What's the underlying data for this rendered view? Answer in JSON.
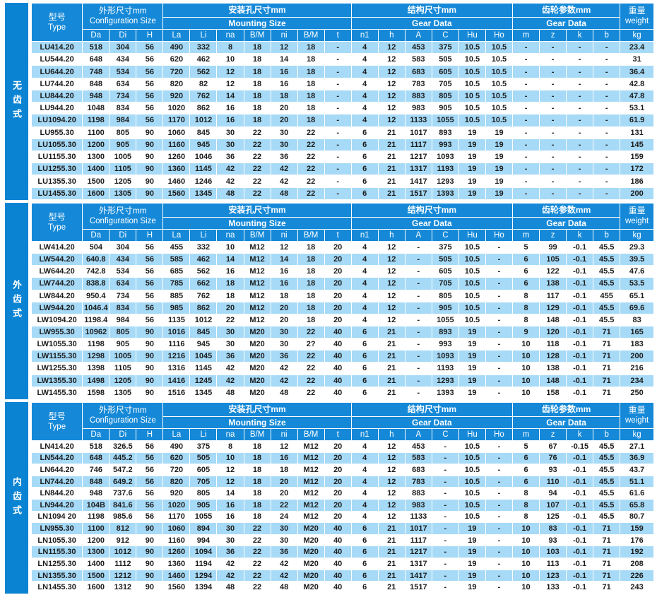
{
  "colors": {
    "header_blue": "#1589d8",
    "sidebar_blue": "#0a83d3",
    "row_light_blue": "#a6daf7",
    "row_white": "#ffffff",
    "text_dark": "#1c1c1c",
    "header_text": "#ffffff"
  },
  "header": {
    "type_cn": "型号",
    "type_en": "Type",
    "groups": [
      {
        "cn": "外形尺寸mm",
        "en": "Configuration Size",
        "cols": [
          "Da",
          "Di",
          "H"
        ],
        "merged_title": true
      },
      {
        "cn": "安装孔尺寸mm",
        "en": "Mounting Size",
        "cols": [
          "La",
          "Li",
          "na",
          "B/M",
          "ni",
          "B/M",
          "t"
        ],
        "merged_title": false
      },
      {
        "cn": "结构尺寸mm",
        "en": "Gear Data",
        "cols": [
          "n1",
          "h",
          "A",
          "C",
          "Hu",
          "Ho"
        ],
        "merged_title": false
      },
      {
        "cn": "齿轮参数mm",
        "en": "Gear Data",
        "cols": [
          "m",
          "z",
          "k",
          "b"
        ],
        "merged_title": false
      }
    ],
    "weight_cn": "重量",
    "weight_en": "weight",
    "weight_col": "kg"
  },
  "sections": [
    {
      "side_label": "无齿式",
      "first_row_shade": "light",
      "rows": [
        [
          "LU414.20",
          "518",
          "304",
          "56",
          "490",
          "332",
          "8",
          "18",
          "12",
          "18",
          "-",
          "4",
          "12",
          "453",
          "375",
          "10.5",
          "10.5",
          "-",
          "-",
          "-",
          "-",
          "23.4"
        ],
        [
          "LU544.20",
          "648",
          "434",
          "56",
          "620",
          "462",
          "10",
          "18",
          "14",
          "18",
          "-",
          "4",
          "12",
          "583",
          "505",
          "10.5",
          "10.5",
          "-",
          "-",
          "-",
          "-",
          "31"
        ],
        [
          "LU644.20",
          "748",
          "534",
          "56",
          "720",
          "562",
          "12",
          "18",
          "16",
          "18",
          "-",
          "4",
          "12",
          "683",
          "605",
          "10.5",
          "10.5",
          "-",
          "-",
          "-",
          "-",
          "36.4"
        ],
        [
          "LU744.20",
          "848",
          "634",
          "56",
          "820",
          "82",
          "12",
          "18",
          "16",
          "18",
          "-",
          "4",
          "12",
          "783",
          "705",
          "10.5",
          "10.5",
          "-",
          "-",
          "-",
          "-",
          "42.8"
        ],
        [
          "LU844.20",
          "948",
          "734",
          "56",
          "920",
          "762",
          "14",
          "18",
          "18",
          "18",
          "-",
          "4",
          "12",
          "883",
          "805",
          "10 5",
          "10.5",
          "-",
          "-",
          "-",
          "-",
          "47.8"
        ],
        [
          "LU944.20",
          "1048",
          "834",
          "56",
          "1020",
          "862",
          "16",
          "18",
          "20",
          "18",
          "-",
          "4",
          "12",
          "983",
          "905",
          "10.5",
          "10.5",
          "-",
          "-",
          "-",
          "-",
          "53.1"
        ],
        [
          "LU1094.20",
          "1198",
          "984",
          "56",
          "1170",
          "1012",
          "16",
          "18",
          "20",
          "18",
          "-",
          "4",
          "12",
          "1133",
          "1055",
          "10.5",
          "10.5",
          "-",
          "-",
          "-",
          "-",
          "61.9"
        ],
        [
          "LU955.30",
          "1100",
          "805",
          "90",
          "1060",
          "845",
          "30",
          "22",
          "30",
          "22",
          "-",
          "6",
          "21",
          "1017",
          "893",
          "19",
          "19",
          "-",
          "-",
          "-",
          "-",
          "131"
        ],
        [
          "LU1055.30",
          "1200",
          "905",
          "90",
          "1160",
          "945",
          "30",
          "22",
          "30",
          "22",
          "-",
          "6",
          "21",
          "1117",
          "993",
          "19",
          "19",
          "-",
          "-",
          "-",
          "-",
          "145"
        ],
        [
          "LU1155.30",
          "1300",
          "1005",
          "90",
          "1260",
          "1046",
          "36",
          "22",
          "36",
          "22",
          "-",
          "6",
          "21",
          "1217",
          "1093",
          "19",
          "19",
          "-",
          "-",
          "-",
          "-",
          "159"
        ],
        [
          "LU1255.30",
          "1400",
          "1105",
          "90",
          "1360",
          "1145",
          "42",
          "22",
          "42",
          "22",
          "-",
          "6",
          "21",
          "1317",
          "1193",
          "19",
          "19",
          "-",
          "-",
          "-",
          "-",
          "172"
        ],
        [
          "LU1355.30",
          "1500",
          "1205",
          "90",
          "1460",
          "1246",
          "42",
          "22",
          "42",
          "22",
          "-",
          "6",
          "21",
          "1417",
          "1293",
          "19",
          "19",
          "-",
          "-",
          "-",
          "-",
          "186"
        ],
        [
          "LU1455.30",
          "1600",
          "1305",
          "90",
          "1560",
          "1345",
          "48",
          "22",
          "48",
          "22",
          "-",
          "6",
          "21",
          "1517",
          "1393",
          "19",
          "19",
          "-",
          "-",
          "-",
          "-",
          "200"
        ]
      ]
    },
    {
      "side_label": "外齿式",
      "first_row_shade": "white",
      "rows": [
        [
          "LW414.20",
          "504",
          "304",
          "56",
          "455",
          "332",
          "10",
          "M12",
          "12",
          "18",
          "20",
          "4",
          "12",
          "-",
          "375",
          "10.5",
          "-",
          "5",
          "99",
          "-0.1",
          "45.5",
          "29.3"
        ],
        [
          "LW544.20",
          "640.8",
          "434",
          "56",
          "585",
          "462",
          "14",
          "M12",
          "14",
          "18",
          "20",
          "4",
          "12",
          "-",
          "505",
          "10.5",
          "-",
          "6",
          "105",
          "-0.1",
          "45.5",
          "39.5"
        ],
        [
          "LW644.20",
          "742.8",
          "534",
          "56",
          "685",
          "562",
          "16",
          "M12",
          "16",
          "18",
          "20",
          "4",
          "12",
          "-",
          "605",
          "10.5",
          "-",
          "6",
          "122",
          "-0.1",
          "45.5",
          "47.6"
        ],
        [
          "LW744.20",
          "838.8",
          "634",
          "56",
          "785",
          "662",
          "18",
          "M12",
          "16",
          "18",
          "20",
          "4",
          "12",
          "-",
          "705",
          "10.5",
          "-",
          "6",
          "138",
          "-0.1",
          "45.5",
          "53.5"
        ],
        [
          "LW844.20",
          "950.4",
          "734",
          "56",
          "885",
          "762",
          "18",
          "M12",
          "18",
          "18",
          "20",
          "4",
          "12",
          "-",
          "805",
          "10.5",
          "-",
          "8",
          "117",
          "-0.1",
          "455",
          "65.1"
        ],
        [
          "LW944.20",
          "1046.4",
          "834",
          "56",
          "985",
          "862",
          "20",
          "M12",
          "20",
          "18",
          "20",
          "4",
          "12",
          "-",
          "905",
          "10.5",
          "-",
          "8",
          "129",
          "-0.1",
          "45.5",
          "69.6"
        ],
        [
          "LW1094.20",
          "1198.4",
          "984",
          "56",
          "1135",
          "1012",
          "22",
          "M12",
          "20",
          "18",
          "20",
          "4",
          "12",
          "-",
          "1055",
          "10.5",
          "-",
          "8",
          "148",
          "-0.1",
          "45.5",
          "83"
        ],
        [
          "LW955.30",
          "10962",
          "805",
          "90",
          "1016",
          "845",
          "30",
          "M20",
          "30",
          "22",
          "40",
          "6",
          "21",
          "-",
          "893",
          "19",
          "-",
          "9",
          "120",
          "-0.1",
          "71",
          "165"
        ],
        [
          "LW1055.30",
          "1198",
          "905",
          "90",
          "1116",
          "945",
          "30",
          "M20",
          "30",
          "2?",
          "40",
          "6",
          "21",
          "-",
          "993",
          "19",
          "-",
          "10",
          "118",
          "-0.1",
          "71",
          "183"
        ],
        [
          "LW1155.30",
          "1298",
          "1005",
          "90",
          "1216",
          "1045",
          "36",
          "M20",
          "36",
          "22",
          "40",
          "6",
          "21",
          "-",
          "1093",
          "19",
          "-",
          "10",
          "128",
          "-0.1",
          "71",
          "200"
        ],
        [
          "LW1255.30",
          "1398",
          "1105",
          "90",
          "1316",
          "1145",
          "42",
          "M20",
          "42",
          "22",
          "40",
          "6",
          "21",
          "-",
          "1193",
          "19",
          "-",
          "10",
          "138",
          "-0.1",
          "71",
          "216"
        ],
        [
          "LW1355.30",
          "1498",
          "1205",
          "90",
          "1416",
          "1245",
          "42",
          "M20",
          "42",
          "22",
          "40",
          "6",
          "21",
          "-",
          "1293",
          "19",
          "-",
          "10",
          "148",
          "-0.1",
          "71",
          "234"
        ],
        [
          "LW1455.30",
          "1598",
          "1305",
          "90",
          "1516",
          "1345",
          "48",
          "M20",
          "48",
          "22",
          "40",
          "6",
          "21",
          "-",
          "1393",
          "19",
          "-",
          "10",
          "158",
          "-0.1",
          "71",
          "250"
        ]
      ]
    },
    {
      "side_label": "内齿式",
      "first_row_shade": "white",
      "rows": [
        [
          "LN414.20",
          "518",
          "326.5",
          "56",
          "490",
          "375",
          "8",
          "18",
          "12",
          "M12",
          "20",
          "4",
          "12",
          "453",
          "-",
          "10.5",
          "-",
          "5",
          "67",
          "-0.15",
          "45.5",
          "27.1"
        ],
        [
          "LN544.20",
          "648",
          "445.2",
          "56",
          "620",
          "505",
          "10",
          "18",
          "16",
          "M12",
          "20",
          "4",
          "12",
          "583",
          "-",
          "10.5",
          "-",
          "6",
          "76",
          "-0.1",
          "45.5",
          "36.9"
        ],
        [
          "LN644.20",
          "746",
          "547.2",
          "56",
          "720",
          "605",
          "12",
          "18",
          "18",
          "M12",
          "20",
          "4",
          "12",
          "683",
          "-",
          "10.5",
          "-",
          "6",
          "93",
          "-0.1",
          "45.5",
          "43.7"
        ],
        [
          "LN744.20",
          "848",
          "649.2",
          "56",
          "820",
          "705",
          "12",
          "18",
          "20",
          "M12",
          "20",
          "4",
          "12",
          "783",
          "-",
          "10.5",
          "-",
          "6",
          "110",
          "-0.1",
          "45.5",
          "51.1"
        ],
        [
          "LN844.20",
          "948",
          "737.6",
          "56",
          "920",
          "805",
          "14",
          "18",
          "20",
          "M12",
          "20",
          "4",
          "12",
          "883",
          "-",
          "10.5",
          "-",
          "8",
          "94",
          "-0.1",
          "45.5",
          "61.6"
        ],
        [
          "LN944.20",
          "104B",
          "841.6",
          "56",
          "1020",
          "905",
          "16",
          "18",
          "22",
          "M12",
          "20",
          "4",
          "12",
          "983",
          "-",
          "10.5",
          "-",
          "8",
          "107",
          "-0.1",
          "45.5",
          "65.8"
        ],
        [
          "LN1094 20",
          "1198",
          "985.6",
          "56",
          "1170",
          "1055",
          "16",
          "18",
          "24",
          "M12",
          "20",
          "4",
          "12",
          "1133",
          "-",
          "10.5",
          "-",
          "8",
          "125",
          "-0.1",
          "45.5",
          "80.7"
        ],
        [
          "LN955.30",
          "1100",
          "812",
          "90",
          "1060",
          "894",
          "30",
          "22",
          "30",
          "M20",
          "40",
          "6",
          "21",
          "1017",
          "-",
          "19",
          "-",
          "10",
          "83",
          "-0.1",
          "71",
          "159"
        ],
        [
          "LN1055.30",
          "1200",
          "912",
          "90",
          "1160",
          "994",
          "30",
          "22",
          "30",
          "M20",
          "40",
          "6",
          "21",
          "1117",
          "-",
          "19",
          "-",
          "10",
          "93",
          "-0.1",
          "71",
          "176"
        ],
        [
          "LN1155.30",
          "1300",
          "1012",
          "90",
          "1260",
          "1094",
          "36",
          "22",
          "36",
          "M20",
          "40",
          "6",
          "21",
          "1217",
          "-",
          "19",
          "-",
          "10",
          "103",
          "-0.1",
          "71",
          "192"
        ],
        [
          "LN1255.30",
          "1400",
          "1112",
          "90",
          "1360",
          "1194",
          "42",
          "22",
          "42",
          "M20",
          "40",
          "6",
          "21",
          "1317",
          "-",
          "19",
          "-",
          "10",
          "113",
          "-0.1",
          "71",
          "208"
        ],
        [
          "LN1355.30",
          "1500",
          "1212",
          "90",
          "1460",
          "1294",
          "42",
          "22",
          "42",
          "M20",
          "40",
          "6",
          "21",
          "1417",
          "-",
          "19",
          "-",
          "10",
          "123",
          "-0.1",
          "71",
          "226"
        ],
        [
          "LN1455.30",
          "1600",
          "1312",
          "90",
          "1560",
          "1394",
          "48",
          "22",
          "48",
          "M20",
          "40",
          "6",
          "21",
          "1517",
          "-",
          "19",
          "-",
          "10",
          "133",
          "-0.1",
          "71",
          "243"
        ]
      ]
    }
  ]
}
